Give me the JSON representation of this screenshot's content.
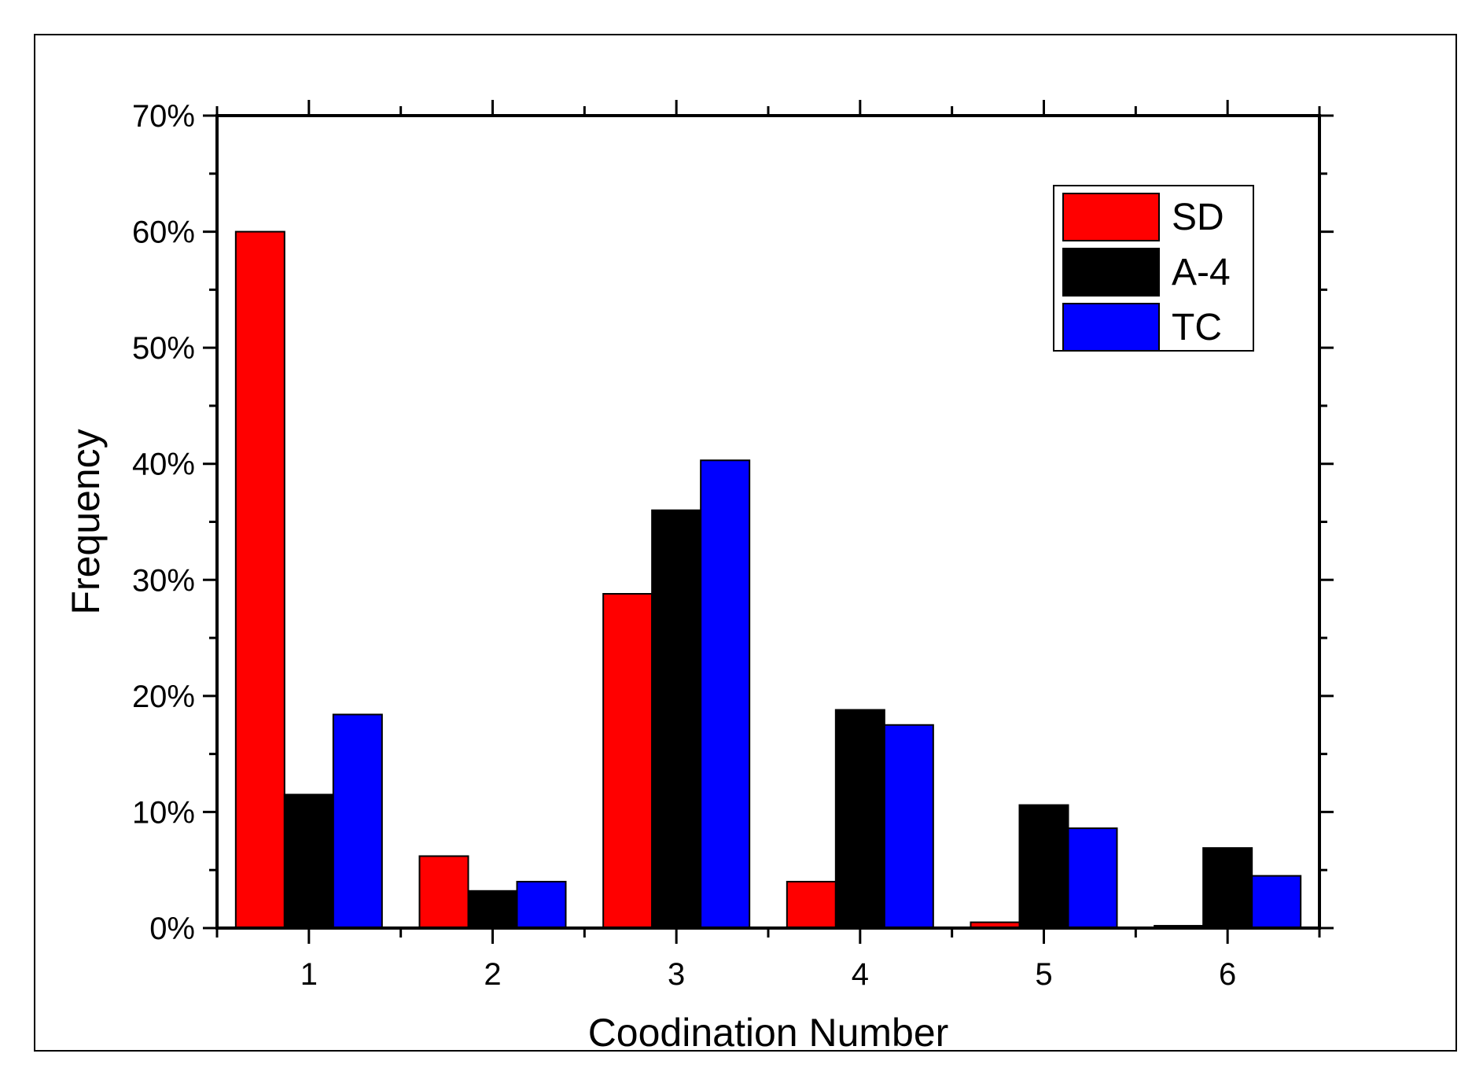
{
  "chart_data": {
    "type": "bar",
    "xlabel": "Coodination Number",
    "ylabel": "Frequency",
    "categories": [
      "1",
      "2",
      "3",
      "4",
      "5",
      "6"
    ],
    "y_ticks": [
      "0%",
      "10%",
      "20%",
      "30%",
      "40%",
      "50%",
      "60%",
      "70%"
    ],
    "ylim": [
      0,
      70
    ],
    "y_unit": "%",
    "legend_position": "top-right",
    "grid": false,
    "series": [
      {
        "name": "SD",
        "color": "#ff0000",
        "values": [
          60.0,
          6.2,
          28.8,
          4.0,
          0.5,
          0.2
        ]
      },
      {
        "name": "A-4",
        "color": "#000000",
        "values": [
          11.5,
          3.2,
          36.0,
          18.8,
          10.6,
          6.9
        ]
      },
      {
        "name": "TC",
        "color": "#0000ff",
        "values": [
          18.4,
          4.0,
          40.3,
          17.5,
          8.6,
          4.5
        ]
      }
    ]
  }
}
